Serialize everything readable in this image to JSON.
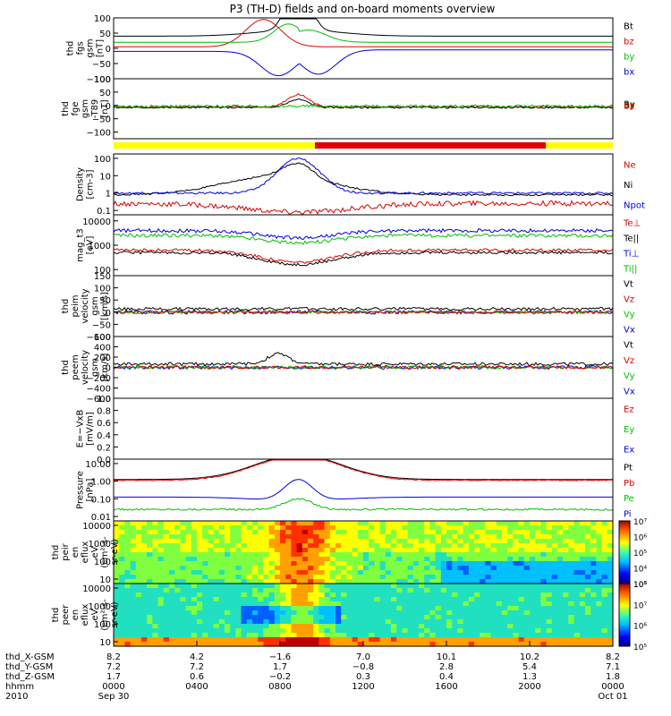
{
  "title": "P3 (TH-D) fields and on-board moments overview",
  "chart_data": [
    {
      "type": "line",
      "ylabel": [
        "thd",
        "fgs",
        "gsm",
        "[nT]"
      ],
      "ylim": [
        -100,
        100
      ],
      "yticks": [
        100,
        50,
        0,
        -50,
        -100
      ],
      "yticklabels": [
        "100",
        "50",
        "0",
        "−50",
        "−100"
      ],
      "legend": [
        {
          "label": "Bt",
          "color": "#000000"
        },
        {
          "label": "bz",
          "color": "#e00000"
        },
        {
          "label": "by",
          "color": "#00c000"
        },
        {
          "label": "bx",
          "color": "#0000e0"
        }
      ]
    },
    {
      "type": "line",
      "ylabel": [
        "thd",
        "fge",
        "gsm",
        "-T89",
        "[nT]"
      ],
      "ylim": [
        -125,
        100
      ],
      "yticks": [
        100,
        50,
        0,
        -50,
        -100
      ],
      "yticklabels": [
        "100",
        "50",
        "0",
        "−50",
        "−100"
      ],
      "legend_overlap": [
        "Bx",
        "By",
        "Bz"
      ]
    },
    {
      "type": "line",
      "ylabel": [
        "Density",
        "[cm-3]"
      ],
      "yscale": "log",
      "yticks": [
        100,
        10,
        1,
        0.1
      ],
      "yticklabels": [
        "100",
        "10",
        "1",
        "0.1"
      ],
      "legend": [
        {
          "label": "Ne",
          "color": "#e00000"
        },
        {
          "label": "Ni",
          "color": "#000000"
        },
        {
          "label": "Npot",
          "color": "#0000e0"
        }
      ]
    },
    {
      "type": "line",
      "ylabel": [
        "mag_t3",
        "[eV]"
      ],
      "yscale": "log",
      "yticks": [
        10000,
        1000,
        100
      ],
      "yticklabels": [
        "10000",
        "1000",
        "100"
      ],
      "legend": [
        {
          "label": "Te⊥",
          "color": "#e00000"
        },
        {
          "label": "Te||",
          "color": "#000000"
        },
        {
          "label": "Ti⊥",
          "color": "#0000e0"
        },
        {
          "label": "Ti||",
          "color": "#00c000"
        }
      ]
    },
    {
      "type": "line",
      "ylabel": [
        "thd",
        "peim",
        "velocity",
        "gsm",
        "[km/s]"
      ],
      "ylim": [
        -100,
        150
      ],
      "yticks": [
        150,
        100,
        50,
        0,
        -50,
        -100
      ],
      "yticklabels": [
        "150",
        "100",
        "50",
        "0",
        "−50",
        "−100"
      ],
      "legend": [
        {
          "label": "Vt",
          "color": "#000000"
        },
        {
          "label": "Vz",
          "color": "#e00000"
        },
        {
          "label": "Vy",
          "color": "#00c000"
        },
        {
          "label": "Vx",
          "color": "#0000e0"
        }
      ]
    },
    {
      "type": "line",
      "ylabel": [
        "thd",
        "peem",
        "velocity",
        "gsm",
        "[km/s]"
      ],
      "ylim": [
        -600,
        600
      ],
      "yticks": [
        600,
        400,
        200,
        0,
        -200,
        -400,
        -600
      ],
      "yticklabels": [
        "600",
        "400",
        "200",
        "0",
        "−200",
        "−400",
        "−600"
      ],
      "legend": [
        {
          "label": "Vt",
          "color": "#000000"
        },
        {
          "label": "Vz",
          "color": "#e00000"
        },
        {
          "label": "Vy",
          "color": "#00c000"
        },
        {
          "label": "Vx",
          "color": "#0000e0"
        }
      ]
    },
    {
      "type": "line",
      "ylabel": [
        "E=−VxB",
        "[mV/m]"
      ],
      "ylim": [
        0,
        1
      ],
      "yticks": [
        1.0,
        0.8,
        0.6,
        0.4,
        0.2,
        0.0
      ],
      "yticklabels": [
        "1.0",
        "0.8",
        "0.6",
        "0.4",
        "0.2",
        "0.0"
      ],
      "legend": [
        {
          "label": "Ez",
          "color": "#e00000"
        },
        {
          "label": "Ey",
          "color": "#00c000"
        },
        {
          "label": "Ex",
          "color": "#0000e0"
        }
      ]
    },
    {
      "type": "line",
      "ylabel": [
        "Pressure",
        "[nPa]"
      ],
      "yscale": "log",
      "yticks": [
        10,
        1,
        0.1,
        0.01
      ],
      "yticklabels": [
        "10.00",
        "1.00",
        "0.10",
        "0.01"
      ],
      "legend": [
        {
          "label": "Pt",
          "color": "#000000"
        },
        {
          "label": "Pb",
          "color": "#e00000"
        },
        {
          "label": "Pe",
          "color": "#00c000"
        },
        {
          "label": "Pi",
          "color": "#0000e0"
        }
      ]
    },
    {
      "type": "heatmap",
      "ylabel": [
        "thd",
        "peir",
        "en",
        "eflux",
        "eV",
        "(cm²-s-",
        "sr-eV)"
      ],
      "yscale": "log",
      "yticks": [
        10000,
        1000,
        100,
        10
      ],
      "yticklabels": [
        "10000",
        "1000",
        "100",
        "10"
      ],
      "colorbar": {
        "min_exp": 3,
        "max_exp": 7,
        "labels": [
          "10³",
          "10⁴",
          "10⁵",
          "10⁶",
          "10⁷"
        ]
      }
    },
    {
      "type": "heatmap",
      "ylabel": [
        "thd",
        "peer",
        "en",
        "eflux",
        "eV",
        "(cm²-s-",
        "sr-eV)"
      ],
      "yscale": "log",
      "yticks": [
        10000,
        1000,
        100,
        10
      ],
      "yticklabels": [
        "10000",
        "1000",
        "100",
        "10"
      ],
      "colorbar": {
        "min_exp": 5,
        "max_exp": 8,
        "labels": [
          "10⁵",
          "10⁶",
          "10⁷",
          "10⁸"
        ]
      }
    }
  ],
  "xaxis": {
    "rows": [
      {
        "label": "thd_X-GSM",
        "values": [
          "8.2",
          "4.2",
          "−1.6",
          "7.0",
          "10.1",
          "10.2",
          "8.2"
        ]
      },
      {
        "label": "thd_Y-GSM",
        "values": [
          "7.2",
          "7.2",
          "1.7",
          "−0.8",
          "2.8",
          "5.4",
          "7.1"
        ]
      },
      {
        "label": "thd_Z-GSM",
        "values": [
          "1.7",
          "0.6",
          "−0.2",
          "0.3",
          "0.4",
          "1.3",
          "1.8"
        ]
      },
      {
        "label": "hhmm",
        "values": [
          "0000",
          "0400",
          "0800",
          "1200",
          "1600",
          "2000",
          "0000"
        ]
      },
      {
        "label": "2010",
        "values": [
          "Sep 30",
          "",
          "",
          "",
          "",
          "",
          "Oct 01"
        ]
      }
    ]
  }
}
